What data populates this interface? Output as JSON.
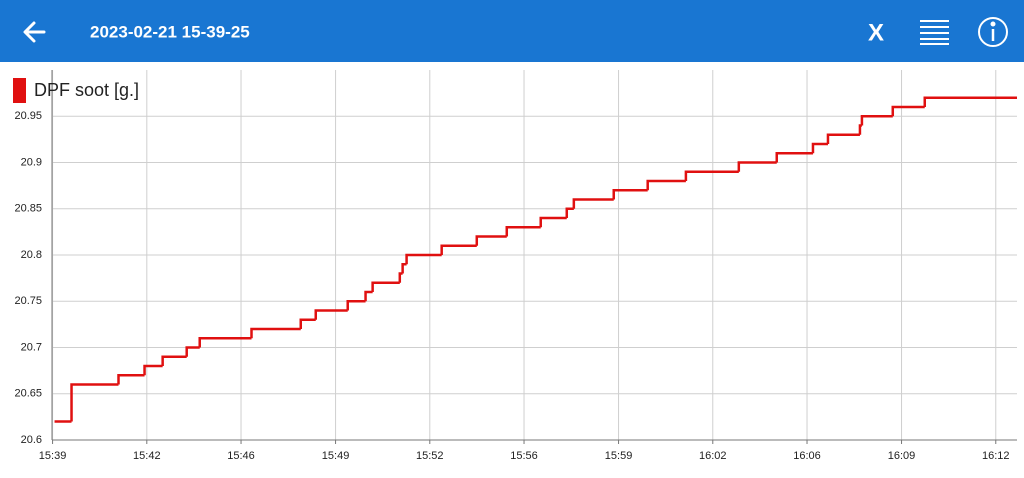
{
  "header": {
    "title": "2023-02-21 15-39-25",
    "close_label": "X"
  },
  "chart_data": {
    "type": "line",
    "drawstyle": "steps-post",
    "grid": true,
    "legend": "top-left",
    "x": [
      939.49,
      940.09,
      941.75,
      942.67,
      943.31,
      944.16,
      944.62,
      946.45,
      948.19,
      948.72,
      949.85,
      950.48,
      950.73,
      951.69,
      951.79,
      951.93,
      953.17,
      954.41,
      955.47,
      956.67,
      957.59,
      957.84,
      959.25,
      960.45,
      961.8,
      963.67,
      965.01,
      966.29,
      966.82,
      967.95,
      968.02,
      969.11,
      970.24,
      973.5
    ],
    "series": [
      {
        "name": "DPF soot [g.]",
        "color": "#e01010",
        "values": [
          20.62,
          20.66,
          20.67,
          20.68,
          20.69,
          20.7,
          20.71,
          20.72,
          20.73,
          20.74,
          20.75,
          20.76,
          20.77,
          20.78,
          20.79,
          20.8,
          20.81,
          20.82,
          20.83,
          20.84,
          20.85,
          20.86,
          20.87,
          20.88,
          20.89,
          20.9,
          20.91,
          20.92,
          20.93,
          20.94,
          20.95,
          20.96,
          20.97,
          20.97
        ]
      }
    ],
    "xlim": [
      939.4,
      973.5
    ],
    "xticks": [
      {
        "value": 939.42,
        "label": "15:39"
      },
      {
        "value": 942.75,
        "label": "15:42"
      },
      {
        "value": 946.08,
        "label": "15:46"
      },
      {
        "value": 949.42,
        "label": "15:49"
      },
      {
        "value": 952.75,
        "label": "15:52"
      },
      {
        "value": 956.08,
        "label": "15:56"
      },
      {
        "value": 959.42,
        "label": "15:59"
      },
      {
        "value": 962.75,
        "label": "16:02"
      },
      {
        "value": 966.08,
        "label": "16:06"
      },
      {
        "value": 969.42,
        "label": "16:09"
      },
      {
        "value": 972.75,
        "label": "16:12"
      }
    ],
    "ylim": [
      20.6,
      21.0
    ],
    "yticks": [
      20.6,
      20.65,
      20.7,
      20.75,
      20.8,
      20.85,
      20.9,
      20.95
    ]
  }
}
